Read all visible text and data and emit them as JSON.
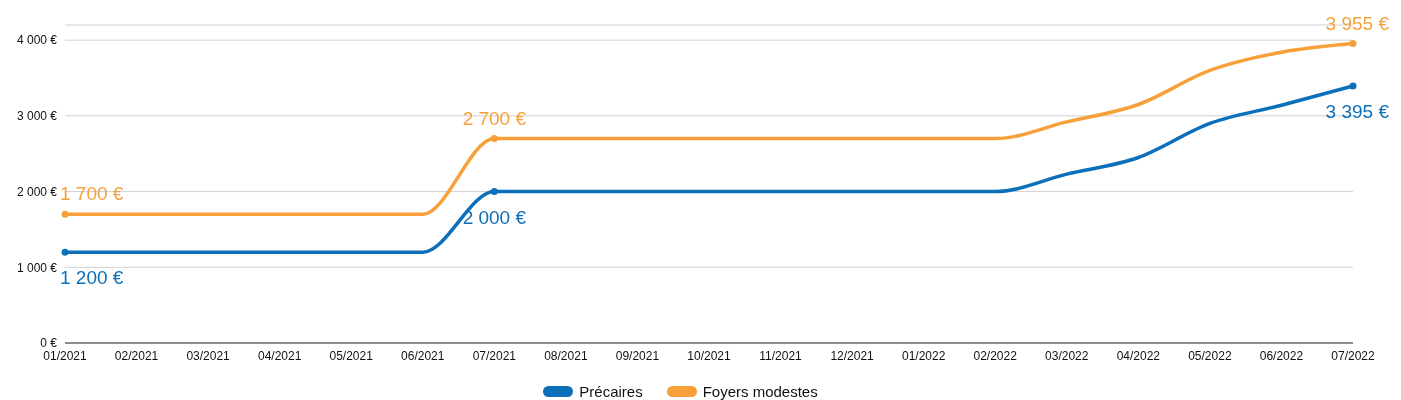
{
  "chart_data": {
    "type": "line",
    "categories": [
      "01/2021",
      "02/2021",
      "03/2021",
      "04/2021",
      "05/2021",
      "06/2021",
      "07/2021",
      "08/2021",
      "09/2021",
      "10/2021",
      "11/2021",
      "12/2021",
      "01/2022",
      "02/2022",
      "03/2022",
      "04/2022",
      "05/2022",
      "06/2022",
      "07/2022"
    ],
    "series": [
      {
        "name": "Précaires",
        "color": "#0b6fba",
        "values": [
          1200,
          1200,
          1200,
          1200,
          1200,
          1200,
          2000,
          2000,
          2000,
          2000,
          2000,
          2000,
          2000,
          2000,
          2230,
          2450,
          2900,
          3140,
          3395
        ],
        "value_labels": [
          "1 200 €",
          null,
          null,
          null,
          null,
          null,
          "2 000 €",
          null,
          null,
          null,
          null,
          null,
          null,
          null,
          null,
          null,
          null,
          null,
          "3 395 €"
        ]
      },
      {
        "name": "Foyers modestes",
        "color": "#f7a03a",
        "values": [
          1700,
          1700,
          1700,
          1700,
          1700,
          1700,
          2700,
          2700,
          2700,
          2700,
          2700,
          2700,
          2700,
          2700,
          2920,
          3150,
          3600,
          3840,
          3955
        ],
        "value_labels": [
          "1 700 €",
          null,
          null,
          null,
          null,
          null,
          "2 700 €",
          null,
          null,
          null,
          null,
          null,
          null,
          null,
          null,
          null,
          null,
          null,
          "3 955 €"
        ]
      }
    ],
    "ylim": [
      0,
      4200
    ],
    "yticks": [
      {
        "value": 0,
        "label": "0 €"
      },
      {
        "value": 1000,
        "label": "1 000 €"
      },
      {
        "value": 2000,
        "label": "2 000 €"
      },
      {
        "value": 3000,
        "label": "3 000 €"
      },
      {
        "value": 4000,
        "label": "4 000 €"
      }
    ],
    "grid": "y",
    "legend": "bottom",
    "line_style": "solid"
  }
}
